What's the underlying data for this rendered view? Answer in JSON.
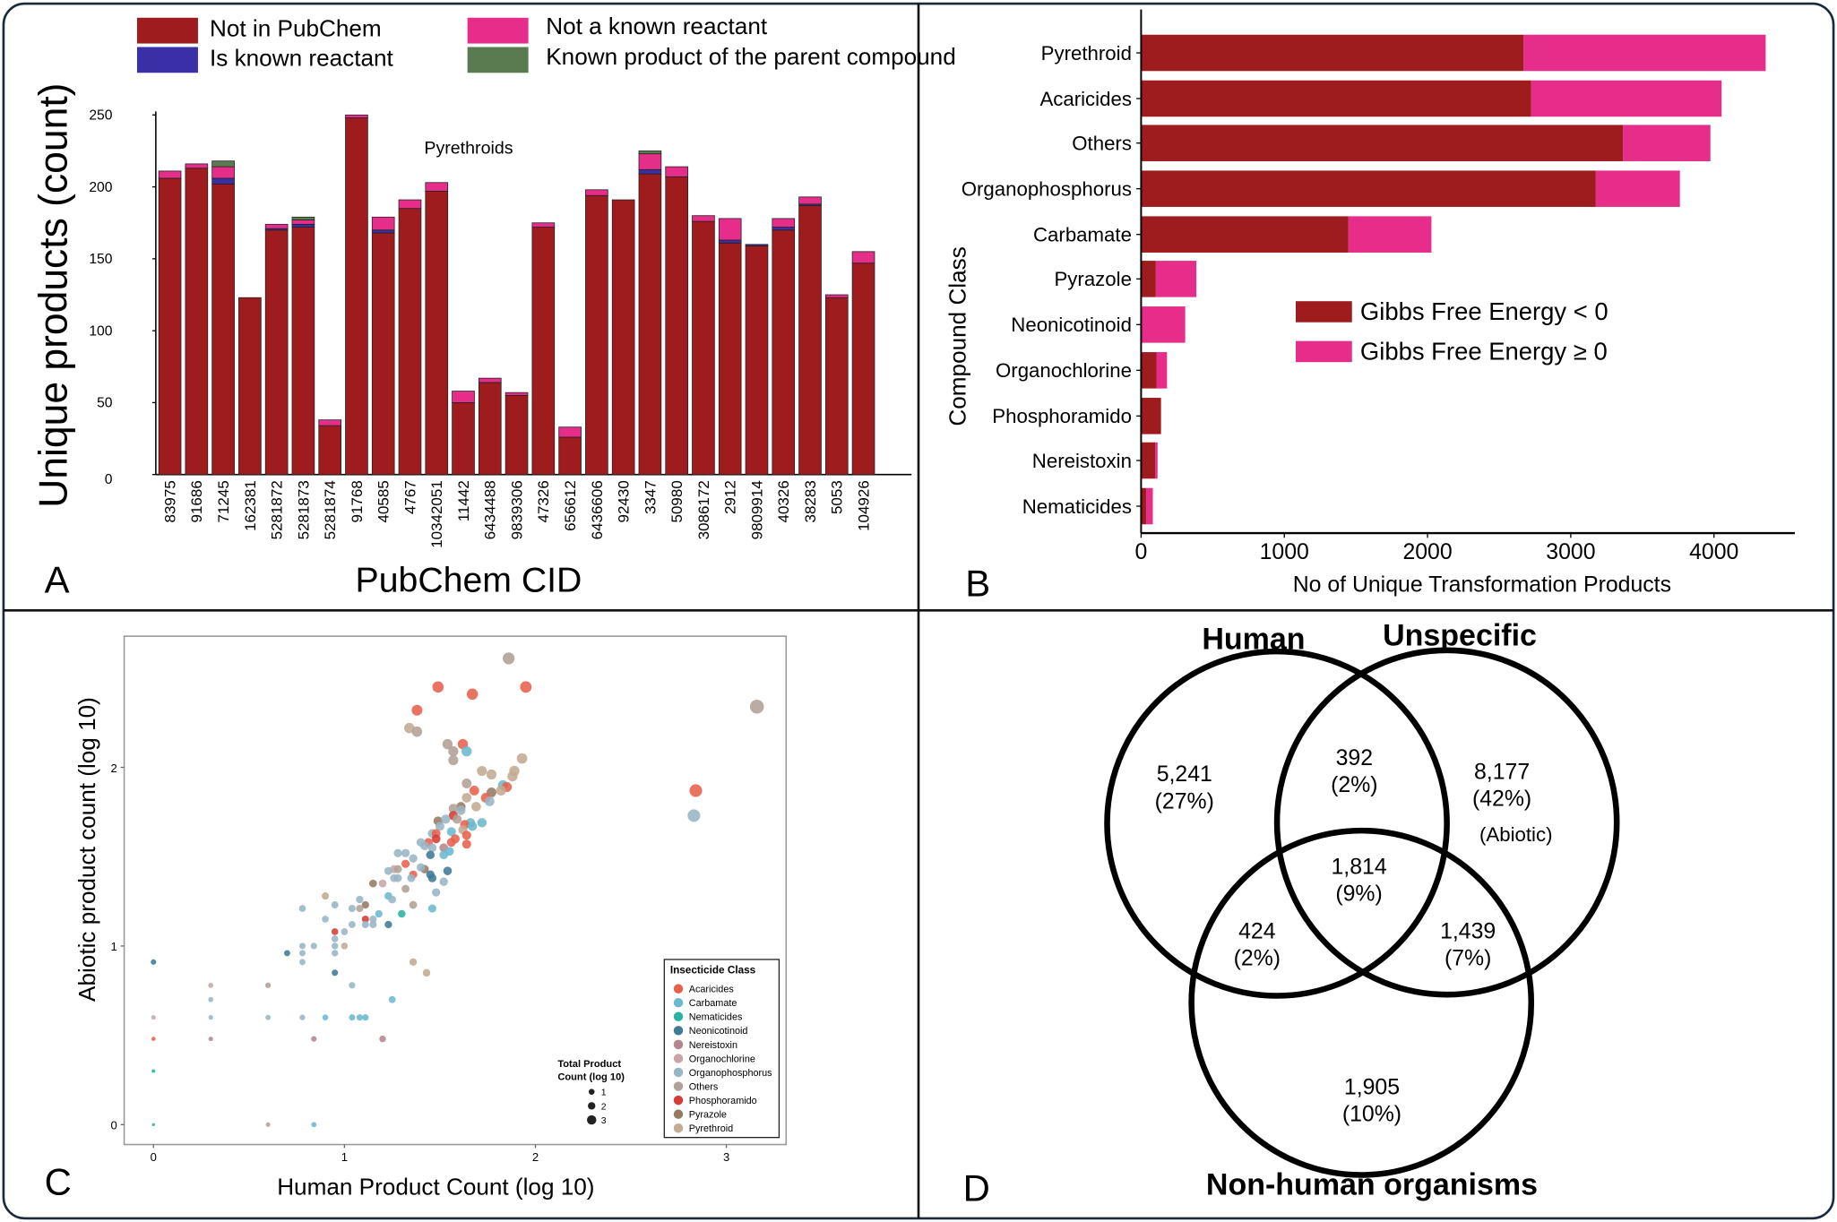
{
  "panels": {
    "a": "A",
    "b": "B",
    "c": "C",
    "d": "D"
  },
  "chart_data": [
    {
      "type": "bar",
      "stacked": true,
      "orientation": "vertical",
      "title": "",
      "xlabel": "PubChem CID",
      "ylabel": "Unique products (count)",
      "annotation": "Pyrethroids",
      "ylim": [
        0,
        250
      ],
      "yticks": [
        0,
        50,
        100,
        150,
        200,
        250
      ],
      "legend_position": "top",
      "categories": [
        "83975",
        "91686",
        "71245",
        "162381",
        "5281872",
        "5281873",
        "5281874",
        "91768",
        "40585",
        "4767",
        "10342051",
        "11442",
        "6434488",
        "9839306",
        "47326",
        "656612",
        "6436606",
        "92430",
        "3347",
        "50980",
        "3086172",
        "2912",
        "9809914",
        "40326",
        "38283",
        "5053",
        "104926"
      ],
      "series": [
        {
          "name": "Not in PubChem",
          "color": "#9e1b1e",
          "values": [
            206,
            213,
            202,
            123,
            170,
            172,
            34,
            248,
            168,
            185,
            197,
            50,
            64,
            55,
            172,
            26,
            194,
            191,
            209,
            207,
            176,
            161,
            159,
            170,
            187,
            123,
            147
          ]
        },
        {
          "name": "Is known reactant",
          "color": "#3a2fa6",
          "values": [
            0,
            0,
            4,
            0,
            1,
            2,
            0,
            0,
            2,
            0,
            0,
            0,
            0,
            0,
            0,
            0,
            0,
            0,
            3,
            0,
            0,
            2,
            1,
            2,
            1,
            0,
            0
          ]
        },
        {
          "name": "Not a known reactant",
          "color": "#e52d89",
          "values": [
            5,
            3,
            8,
            0,
            3,
            3,
            4,
            2,
            9,
            6,
            6,
            8,
            3,
            2,
            3,
            7,
            4,
            0,
            11,
            7,
            4,
            15,
            0,
            6,
            5,
            2,
            8
          ]
        },
        {
          "name": "Known product of the parent compound",
          "color": "#5a7b4f",
          "values": [
            0,
            0,
            4,
            0,
            0,
            2,
            0,
            0,
            0,
            0,
            0,
            0,
            0,
            0,
            0,
            0,
            0,
            0,
            2,
            0,
            0,
            0,
            0,
            0,
            0,
            0,
            0
          ]
        }
      ]
    },
    {
      "type": "bar",
      "stacked": true,
      "orientation": "horizontal",
      "title": "",
      "xlabel": "No of Unique Transformation Products",
      "ylabel": "Compound Class",
      "xlim": [
        0,
        4560
      ],
      "xticks": [
        0,
        1000,
        2000,
        3000,
        4000
      ],
      "legend_position": "center-right",
      "categories": [
        "Pyrethroid",
        "Acaricides",
        "Others",
        "Organophosphorus",
        "Carbamate",
        "Pyrazole",
        "Neonicotinoid",
        "Organochlorine",
        "Phosphoramido",
        "Nereistoxin",
        "Nematicides"
      ],
      "series": [
        {
          "name": "Gibbs Free Energy < 0",
          "color": "#9e1b1e",
          "values": [
            2671,
            2724,
            3364,
            3175,
            1448,
            103,
            0,
            107,
            139,
            98,
            37
          ]
        },
        {
          "name": "Gibbs Free Energy ≥ 0",
          "color": "#e52d89",
          "values": [
            1690,
            1329,
            611,
            587,
            579,
            283,
            308,
            74,
            0,
            17,
            45
          ]
        }
      ]
    },
    {
      "type": "scatter",
      "title": "",
      "xlabel": "Human Product Count (log 10)",
      "ylabel": "Abiotic product count (log 10)",
      "xlim": [
        -0.153,
        3.31
      ],
      "ylim": [
        -0.11,
        2.73
      ],
      "xticks": [
        0,
        1,
        2,
        3
      ],
      "yticks": [
        0,
        1,
        2
      ],
      "grid": false,
      "legend_position": "bottom-right",
      "legend_title": "Insecticide Class",
      "size_legend": {
        "title_lines": [
          "Total Product",
          "Count (log 10)"
        ],
        "values": [
          1,
          2,
          3
        ]
      },
      "classes": [
        {
          "key": "A",
          "name": "Acaricides",
          "color": "#e8604c"
        },
        {
          "key": "C",
          "name": "Carbamate",
          "color": "#6bb8cf"
        },
        {
          "key": "Nm",
          "name": "Nematicides",
          "color": "#2ab3a0"
        },
        {
          "key": "Ne",
          "name": "Neonicotinoid",
          "color": "#3f7a97"
        },
        {
          "key": "Nr",
          "name": "Nereistoxin",
          "color": "#b48790"
        },
        {
          "key": "Oc",
          "name": "Organochlorine",
          "color": "#c9a5aa"
        },
        {
          "key": "Op",
          "name": "Organophosphorus",
          "color": "#98b5c5"
        },
        {
          "key": "O",
          "name": "Others",
          "color": "#b1a096"
        },
        {
          "key": "P",
          "name": "Phosphoramido",
          "color": "#d63b35"
        },
        {
          "key": "Pz",
          "name": "Pyrazole",
          "color": "#957a63"
        },
        {
          "key": "Py",
          "name": "Pyrethroid",
          "color": "#c1ab92"
        }
      ],
      "points": [
        [
          1.86,
          2.61,
          "O"
        ],
        [
          1.49,
          2.45,
          "A"
        ],
        [
          1.67,
          2.41,
          "A"
        ],
        [
          1.95,
          2.45,
          "A"
        ],
        [
          3.16,
          2.34,
          "O"
        ],
        [
          1.38,
          2.32,
          "A"
        ],
        [
          1.34,
          2.22,
          "Py"
        ],
        [
          1.38,
          2.2,
          "O"
        ],
        [
          1.54,
          2.13,
          "O"
        ],
        [
          1.62,
          2.13,
          "A"
        ],
        [
          1.57,
          2.09,
          "O"
        ],
        [
          1.64,
          2.09,
          "C"
        ],
        [
          1.57,
          2.04,
          "O"
        ],
        [
          1.93,
          2.05,
          "Py"
        ],
        [
          1.72,
          1.98,
          "Py"
        ],
        [
          1.77,
          1.96,
          "Py"
        ],
        [
          1.89,
          1.98,
          "Py"
        ],
        [
          1.88,
          1.95,
          "Py"
        ],
        [
          1.83,
          1.9,
          "C"
        ],
        [
          1.85,
          1.89,
          "A"
        ],
        [
          1.64,
          1.91,
          "O"
        ],
        [
          1.68,
          1.87,
          "A"
        ],
        [
          1.77,
          1.86,
          "Pz"
        ],
        [
          1.82,
          1.87,
          "Py"
        ],
        [
          1.64,
          1.83,
          "Py"
        ],
        [
          1.74,
          1.83,
          "A"
        ],
        [
          1.76,
          1.81,
          "Op"
        ],
        [
          1.69,
          1.78,
          "Py"
        ],
        [
          1.61,
          1.78,
          "Pz"
        ],
        [
          1.57,
          1.77,
          "O"
        ],
        [
          1.61,
          1.76,
          "Op"
        ],
        [
          1.49,
          1.7,
          "Pz"
        ],
        [
          1.57,
          1.73,
          "P"
        ],
        [
          1.53,
          1.71,
          "Op"
        ],
        [
          1.59,
          1.71,
          "O"
        ],
        [
          1.66,
          1.69,
          "C"
        ],
        [
          1.72,
          1.69,
          "C"
        ],
        [
          1.5,
          1.67,
          "Op"
        ],
        [
          1.63,
          1.68,
          "A"
        ],
        [
          1.67,
          1.67,
          "C"
        ],
        [
          1.62,
          1.65,
          "Py"
        ],
        [
          1.46,
          1.63,
          "Op"
        ],
        [
          1.56,
          1.64,
          "C"
        ],
        [
          1.64,
          1.62,
          "A"
        ],
        [
          1.48,
          1.63,
          "A"
        ],
        [
          1.48,
          1.6,
          "P"
        ],
        [
          1.44,
          1.58,
          "A"
        ],
        [
          1.4,
          1.58,
          "Op"
        ],
        [
          1.56,
          1.58,
          "A"
        ],
        [
          1.58,
          1.6,
          "A"
        ],
        [
          1.64,
          1.57,
          "A"
        ],
        [
          1.42,
          1.56,
          "Op"
        ],
        [
          1.46,
          1.55,
          "Op"
        ],
        [
          1.52,
          1.55,
          "Nr"
        ],
        [
          1.55,
          1.53,
          "C"
        ],
        [
          1.28,
          1.52,
          "Op"
        ],
        [
          1.32,
          1.52,
          "Op"
        ],
        [
          1.36,
          1.49,
          "Op"
        ],
        [
          1.45,
          1.51,
          "Ne"
        ],
        [
          1.52,
          1.51,
          "C"
        ],
        [
          1.32,
          1.46,
          "A"
        ],
        [
          1.26,
          1.43,
          "Oc"
        ],
        [
          1.23,
          1.42,
          "Op"
        ],
        [
          1.28,
          1.43,
          "O"
        ],
        [
          1.42,
          1.43,
          "Pz"
        ],
        [
          1.4,
          1.44,
          "Op"
        ],
        [
          1.36,
          1.4,
          "A"
        ],
        [
          1.26,
          1.38,
          "Op"
        ],
        [
          1.28,
          1.38,
          "Op"
        ],
        [
          1.45,
          1.4,
          "Ne"
        ],
        [
          1.46,
          1.38,
          "Ne"
        ],
        [
          1.54,
          1.42,
          "Ne"
        ],
        [
          1.35,
          1.38,
          "Op"
        ],
        [
          1.15,
          1.35,
          "Pz"
        ],
        [
          1.2,
          1.35,
          "Oc"
        ],
        [
          1.32,
          1.32,
          "O"
        ],
        [
          1.52,
          1.36,
          "Op"
        ],
        [
          1.48,
          1.3,
          "Op"
        ],
        [
          0.9,
          1.28,
          "Py"
        ],
        [
          1.23,
          1.28,
          "C"
        ],
        [
          1.25,
          1.26,
          "Op"
        ],
        [
          1.08,
          1.26,
          "Op"
        ],
        [
          1.11,
          1.23,
          "Pz"
        ],
        [
          1.36,
          1.23,
          "O"
        ],
        [
          0.78,
          1.21,
          "Op"
        ],
        [
          0.95,
          1.23,
          "Op"
        ],
        [
          1.04,
          1.21,
          "Op"
        ],
        [
          1.08,
          1.21,
          "O"
        ],
        [
          1.18,
          1.18,
          "C"
        ],
        [
          1.3,
          1.18,
          "Nm"
        ],
        [
          1.46,
          1.21,
          "C"
        ],
        [
          0.9,
          1.15,
          "Op"
        ],
        [
          1.11,
          1.15,
          "P"
        ],
        [
          1.15,
          1.15,
          "Op"
        ],
        [
          1.04,
          1.12,
          "Op"
        ],
        [
          1.11,
          1.12,
          "Op"
        ],
        [
          1.15,
          1.12,
          "Op"
        ],
        [
          1.23,
          1.12,
          "Ne"
        ],
        [
          0.95,
          1.08,
          "P"
        ],
        [
          1.0,
          1.08,
          "Op"
        ],
        [
          0.95,
          1.04,
          "Op"
        ],
        [
          0.78,
          1.0,
          "Op"
        ],
        [
          0.84,
          1.0,
          "Op"
        ],
        [
          0.95,
          1.0,
          "Op"
        ],
        [
          1.0,
          1.0,
          "Py"
        ],
        [
          0.7,
          0.96,
          "Ne"
        ],
        [
          0.78,
          0.96,
          "Op"
        ],
        [
          0.95,
          0.96,
          "Op"
        ],
        [
          0.78,
          0.91,
          "Op"
        ],
        [
          1.36,
          0.91,
          "Py"
        ],
        [
          1.43,
          0.85,
          "Py"
        ],
        [
          0.95,
          0.85,
          "Ne"
        ],
        [
          0,
          0.91,
          "Ne"
        ],
        [
          0.3,
          0.78,
          "Oc"
        ],
        [
          0.6,
          0.78,
          "O"
        ],
        [
          1.04,
          0.78,
          "Op"
        ],
        [
          0.3,
          0.7,
          "Op"
        ],
        [
          1.25,
          0.7,
          "C"
        ],
        [
          0,
          0.6,
          "Oc"
        ],
        [
          0.3,
          0.6,
          "Op"
        ],
        [
          0.6,
          0.6,
          "Op"
        ],
        [
          0.78,
          0.6,
          "Op"
        ],
        [
          0.9,
          0.6,
          "C"
        ],
        [
          1.04,
          0.6,
          "C"
        ],
        [
          1.08,
          0.6,
          "C"
        ],
        [
          1.11,
          0.6,
          "C"
        ],
        [
          0,
          0.48,
          "A"
        ],
        [
          0.3,
          0.48,
          "Nr"
        ],
        [
          0.84,
          0.48,
          "Nr"
        ],
        [
          1.2,
          0.48,
          "Nr"
        ],
        [
          0,
          0.3,
          "Nm"
        ],
        [
          0,
          0,
          "Nm"
        ],
        [
          0.6,
          0,
          "O"
        ],
        [
          0.84,
          0,
          "C"
        ],
        [
          2.84,
          1.87,
          "A"
        ],
        [
          2.83,
          1.73,
          "Op"
        ]
      ]
    }
  ],
  "venn": {
    "sets": [
      "Human",
      "Unspecific",
      "Non-human organisms"
    ],
    "regions": [
      {
        "id": "human-only",
        "count": "5,241",
        "pct": "(27%)"
      },
      {
        "id": "human-unspecific",
        "count": "392",
        "pct": "(2%)"
      },
      {
        "id": "unspecific-only",
        "count": "8,177",
        "pct": "(42%)",
        "note": "(Abiotic)"
      },
      {
        "id": "all-three",
        "count": "1,814",
        "pct": "(9%)"
      },
      {
        "id": "human-nonhuman",
        "count": "424",
        "pct": "(2%)"
      },
      {
        "id": "unspecific-nonhuman",
        "count": "1,439",
        "pct": "(7%)"
      },
      {
        "id": "nonhuman-only",
        "count": "1,905",
        "pct": "(10%)"
      }
    ]
  }
}
